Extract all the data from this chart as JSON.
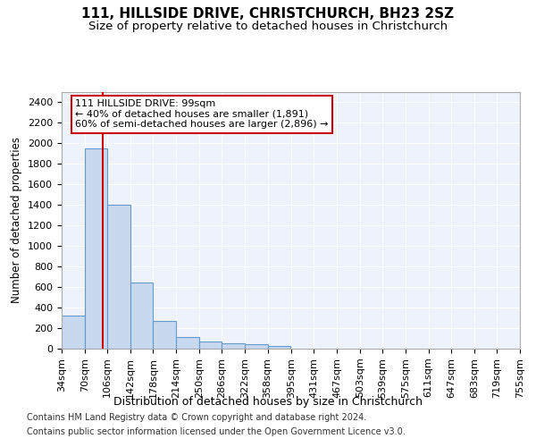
{
  "title1": "111, HILLSIDE DRIVE, CHRISTCHURCH, BH23 2SZ",
  "title2": "Size of property relative to detached houses in Christchurch",
  "xlabel": "Distribution of detached houses by size in Christchurch",
  "ylabel": "Number of detached properties",
  "bin_edges": [
    34,
    70,
    106,
    142,
    178,
    214,
    250,
    286,
    322,
    358,
    395,
    431,
    467,
    503,
    539,
    575,
    611,
    647,
    683,
    719,
    755
  ],
  "bar_heights": [
    320,
    1950,
    1400,
    645,
    270,
    110,
    70,
    55,
    45,
    30,
    0,
    0,
    0,
    0,
    0,
    0,
    0,
    0,
    0,
    0
  ],
  "bar_color": "#c8d8ee",
  "bar_edge_color": "#6699cc",
  "vline_x": 99,
  "vline_color": "#cc0000",
  "annotation_text": "111 HILLSIDE DRIVE: 99sqm\n← 40% of detached houses are smaller (1,891)\n60% of semi-detached houses are larger (2,896) →",
  "annotation_box_color": "white",
  "annotation_box_edge_color": "#cc0000",
  "footnote1": "Contains HM Land Registry data © Crown copyright and database right 2024.",
  "footnote2": "Contains public sector information licensed under the Open Government Licence v3.0.",
  "ylim": [
    0,
    2500
  ],
  "yticks": [
    0,
    200,
    400,
    600,
    800,
    1000,
    1200,
    1400,
    1600,
    1800,
    2000,
    2200,
    2400
  ],
  "title1_fontsize": 11,
  "title2_fontsize": 9.5,
  "xlabel_fontsize": 9,
  "ylabel_fontsize": 8.5,
  "tick_fontsize": 8,
  "annotation_fontsize": 8,
  "footnote_fontsize": 7,
  "background_color": "#eef3fb"
}
